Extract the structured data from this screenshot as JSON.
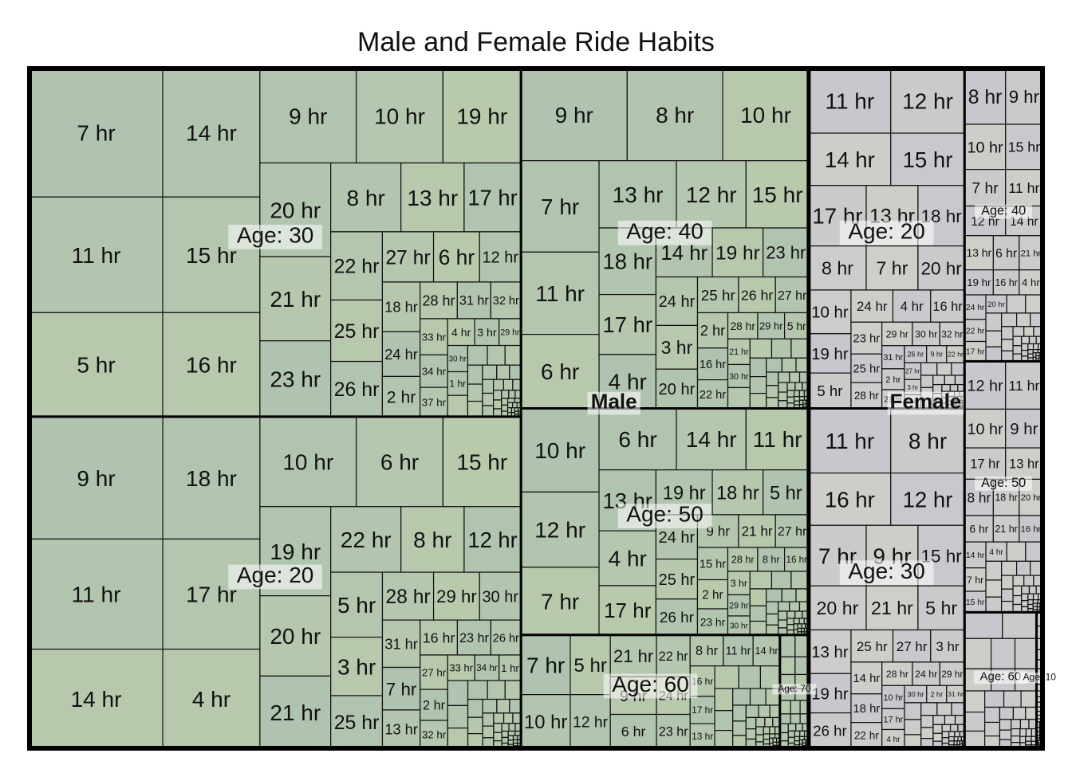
{
  "chart_data": {
    "type": "treemap",
    "title": "Male and Female Ride Habits",
    "color_by_group": {
      "Male": "#b4c6ae",
      "Female": "#cbcbcb"
    },
    "groups": [
      {
        "name": "Male",
        "label": "Male",
        "value": 65,
        "children": [
          {
            "name": "Age: 30",
            "value": 21,
            "labels": [
              "7 hr",
              "11 hr",
              "5 hr",
              "14 hr",
              "15 hr",
              "16 hr",
              "9 hr",
              "10 hr",
              "19 hr",
              "20 hr",
              "21 hr",
              "23 hr",
              "8 hr",
              "13 hr",
              "17 hr",
              "22 hr",
              "25 hr",
              "26 hr",
              "27 hr",
              "6 hr",
              "12 hr",
              "18 hr",
              "24 hr",
              "2 hr",
              "28 hr",
              "31 hr",
              "32 hr",
              "33 hr",
              "34 hr",
              "37 hr",
              "4 hr",
              "3 hr",
              "29 hr",
              "30 hr",
              "1 hr"
            ]
          },
          {
            "name": "Age: 20",
            "value": 20,
            "labels": [
              "9 hr",
              "11 hr",
              "14 hr",
              "18 hr",
              "17 hr",
              "4 hr",
              "10 hr",
              "6 hr",
              "15 hr",
              "19 hr",
              "20 hr",
              "21 hr",
              "22 hr",
              "8 hr",
              "12 hr",
              "5 hr",
              "3 hr",
              "25 hr",
              "28 hr",
              "29 hr",
              "30 hr",
              "31 hr",
              "7 hr",
              "13 hr",
              "16 hr",
              "23 hr",
              "26 hr",
              "27 hr",
              "2 hr",
              "32 hr",
              "33 hr",
              "34 hr",
              "1 hr"
            ]
          },
          {
            "name": "Age: 40",
            "value": 12,
            "labels": [
              "9 hr",
              "8 hr",
              "10 hr",
              "7 hr",
              "11 hr",
              "6 hr",
              "13 hr",
              "12 hr",
              "15 hr",
              "18 hr",
              "17 hr",
              "4 hr",
              "14 hr",
              "19 hr",
              "23 hr",
              "24 hr",
              "3 hr",
              "20 hr",
              "25 hr",
              "26 hr",
              "27 hr",
              "2 hr",
              "16 hr",
              "22 hr",
              "28 hr",
              "29 hr",
              "5 hr",
              "21 hr",
              "30 hr"
            ]
          },
          {
            "name": "Age: 50",
            "value": 8,
            "labels": [
              "10 hr",
              "12 hr",
              "7 hr",
              "6 hr",
              "14 hr",
              "11 hr",
              "13 hr",
              "4 hr",
              "17 hr",
              "19 hr",
              "18 hr",
              "5 hr",
              "24 hr",
              "25 hr",
              "26 hr",
              "9 hr",
              "21 hr",
              "27 hr",
              "15 hr",
              "2 hr",
              "23 hr",
              "28 hr",
              "8 hr",
              "16 hr",
              "3 hr",
              "29 hr",
              "30 hr"
            ]
          },
          {
            "name": "Age: 60",
            "value": 3.6,
            "labels": [
              "7 hr",
              "10 hr",
              "5 hr",
              "12 hr",
              "21 hr",
              "9 hr",
              "6 hr",
              "22 hr",
              "24 hr",
              "23 hr",
              "8 hr",
              "11 hr",
              "14 hr",
              "16 hr",
              "17 hr",
              "13 hr"
            ]
          },
          {
            "name": "Age: 70",
            "value": 0.4,
            "labels": []
          }
        ]
      },
      {
        "name": "Female",
        "label": "Female",
        "value": 19.5,
        "children": [
          {
            "name": "Age: 20",
            "value": 6.5,
            "labels": [
              "11 hr",
              "12 hr",
              "14 hr",
              "15 hr",
              "17 hr",
              "13 hr",
              "18 hr",
              "8 hr",
              "7 hr",
              "20 hr",
              "10 hr",
              "19 hr",
              "5 hr",
              "24 hr",
              "4 hr",
              "16 hr",
              "23 hr",
              "25 hr",
              "28 hr",
              "29 hr",
              "30 hr",
              "32 hr",
              "31 hr",
              "2 hr",
              "21 hr",
              "26 hr",
              "9 hr",
              "22 hr",
              "27 hr",
              "3 hr",
              "33 hr"
            ]
          },
          {
            "name": "Age: 30",
            "value": 6.5,
            "labels": [
              "11 hr",
              "8 hr",
              "16 hr",
              "12 hr",
              "7 hr",
              "9 hr",
              "15 hr",
              "20 hr",
              "21 hr",
              "5 hr",
              "13 hr",
              "19 hr",
              "26 hr",
              "25 hr",
              "27 hr",
              "3 hr",
              "14 hr",
              "18 hr",
              "22 hr",
              "28 hr",
              "24 hr",
              "29 hr",
              "10 hr",
              "17 hr",
              "4 hr",
              "30 hr",
              "2 hr",
              "31 hr"
            ]
          },
          {
            "name": "Age: 40",
            "value": 2.8,
            "labels": [
              "8 hr",
              "9 hr",
              "10 hr",
              "15 hr",
              "7 hr",
              "11 hr",
              "12 hr",
              "14 hr",
              "13 hr",
              "6 hr",
              "21 hr",
              "19 hr",
              "16 hr",
              "4 hr",
              "24 hr",
              "22 hr",
              "17 hr",
              "20 hr"
            ]
          },
          {
            "name": "Age: 50",
            "value": 2.4,
            "labels": [
              "12 hr",
              "11 hr",
              "10 hr",
              "9 hr",
              "17 hr",
              "13 hr",
              "8 hr",
              "18 hr",
              "20 hr",
              "6 hr",
              "21 hr",
              "16 hr",
              "14 hr",
              "7 hr",
              "15 hr",
              "4 hr"
            ]
          },
          {
            "name": "Age: 60",
            "value": 1.2,
            "labels": []
          },
          {
            "name": "Age: 10",
            "value": 0.1,
            "labels": []
          }
        ]
      }
    ]
  }
}
